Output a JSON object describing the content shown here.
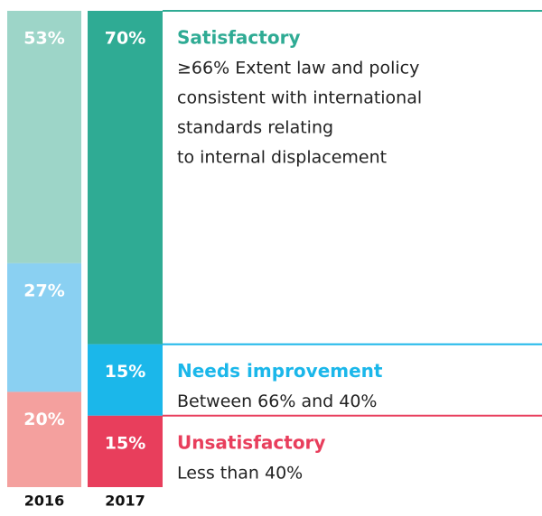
{
  "chart_data": {
    "type": "stacked_bar",
    "categories": [
      "2016",
      "2017"
    ],
    "ylim": [
      0,
      100
    ],
    "series": [
      {
        "name": "Satisfactory",
        "colors": [
          "#9dd5c8",
          "#2fab94"
        ],
        "values": [
          53,
          70
        ],
        "value_labels": [
          "53%",
          "70%"
        ],
        "description": [
          "≥66% Extent law and policy",
          "consistent with international",
          "standards relating",
          "to internal displacement"
        ]
      },
      {
        "name": "Needs improvement",
        "colors": [
          "#8ad0f2",
          "#1bb7ea"
        ],
        "values": [
          27,
          15
        ],
        "value_labels": [
          "27%",
          "15%"
        ],
        "description": [
          "Between 66% and 40%"
        ]
      },
      {
        "name": "Unsatisfactory",
        "colors": [
          "#f4a09e",
          "#e83e5c"
        ],
        "values": [
          20,
          15
        ],
        "value_labels": [
          "20%",
          "15%"
        ],
        "description": [
          "Less than 40%"
        ]
      }
    ]
  }
}
